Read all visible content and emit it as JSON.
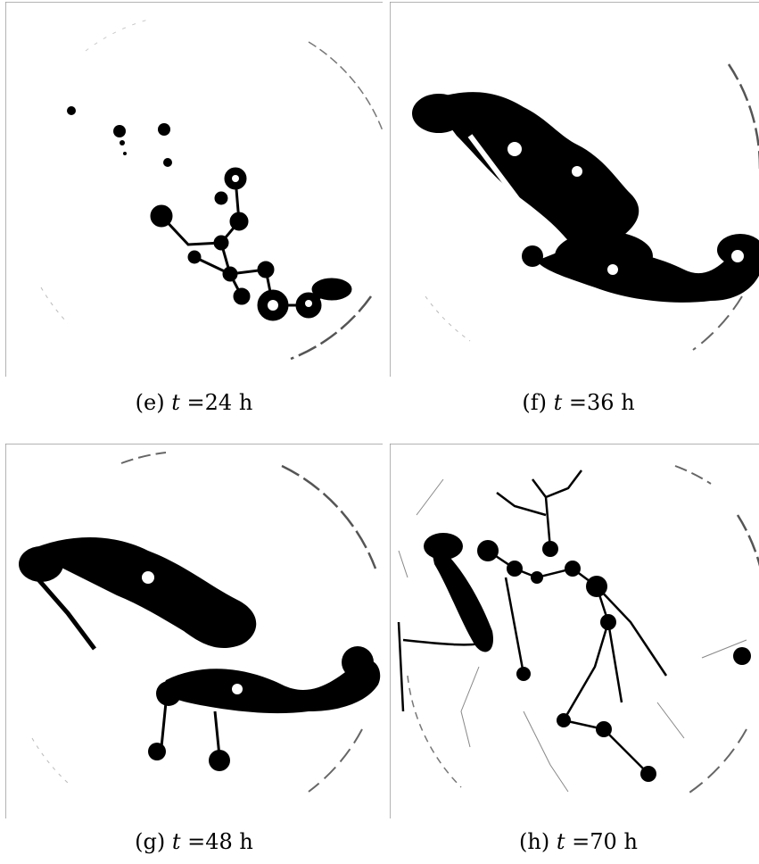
{
  "figure": {
    "panels": [
      {
        "id": "e",
        "label": "(e)",
        "var": "t",
        "eq": "=",
        "value": "24",
        "unit": "h"
      },
      {
        "id": "f",
        "label": "(f)",
        "var": "t",
        "eq": "=",
        "value": "36",
        "unit": "h"
      },
      {
        "id": "g",
        "label": "(g)",
        "var": "t",
        "eq": "=",
        "value": "48",
        "unit": "h"
      },
      {
        "id": "h",
        "label": "(h)",
        "var": "t",
        "eq": "=",
        "value": "70",
        "unit": "h"
      }
    ]
  },
  "colors": {
    "foreground": "#000000",
    "background": "#ffffff",
    "frame": "#9a9a9a"
  }
}
